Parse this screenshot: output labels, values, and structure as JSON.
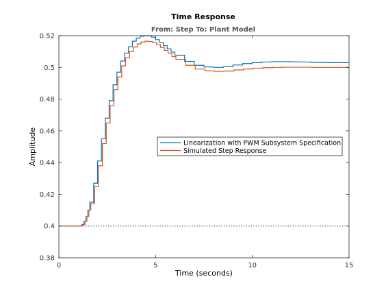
{
  "chart_data": {
    "type": "line",
    "title": "Time Response",
    "subtitle": "From: Step  To: Plant Model",
    "xlabel": "Time (seconds)",
    "ylabel": "Amplitude",
    "xlim": [
      0,
      15
    ],
    "ylim": [
      0.38,
      0.52
    ],
    "xticks": [
      0,
      5,
      10,
      15
    ],
    "yticks": [
      0.38,
      0.4,
      0.42,
      0.44,
      0.46,
      0.48,
      0.5,
      0.52
    ],
    "grid": false,
    "legend_position": "right",
    "reference_line": {
      "y": 0.4,
      "style": "dotted"
    },
    "series": [
      {
        "name": "Linearization with PWM Subsystem Specification",
        "color": "#0072BD",
        "x": [
          0,
          1.0,
          1.1,
          1.2,
          1.3,
          1.4,
          1.5,
          1.6,
          1.8,
          2.0,
          2.2,
          2.4,
          2.6,
          2.8,
          3.0,
          3.2,
          3.4,
          3.6,
          3.8,
          4.0,
          4.2,
          4.4,
          4.6,
          4.8,
          5.0,
          5.2,
          5.4,
          5.6,
          5.8,
          6.0,
          6.5,
          7.0,
          7.5,
          8.0,
          8.5,
          9.0,
          9.5,
          10.0,
          10.5,
          11.0,
          11.5,
          12.0,
          12.5,
          13.0,
          13.5,
          14.0,
          14.5,
          15.0
        ],
        "y": [
          0.4,
          0.4,
          0.4002,
          0.401,
          0.403,
          0.406,
          0.41,
          0.415,
          0.427,
          0.441,
          0.455,
          0.468,
          0.479,
          0.489,
          0.497,
          0.504,
          0.509,
          0.513,
          0.5165,
          0.5185,
          0.5196,
          0.52,
          0.5198,
          0.519,
          0.5175,
          0.5157,
          0.5137,
          0.5117,
          0.5096,
          0.5077,
          0.5038,
          0.5013,
          0.5003,
          0.5,
          0.5004,
          0.5015,
          0.5024,
          0.503,
          0.5034,
          0.5036,
          0.5036,
          0.5035,
          0.5034,
          0.5032,
          0.5031,
          0.503,
          0.503,
          0.503
        ]
      },
      {
        "name": "Simulated Step Response",
        "color": "#D95319",
        "x": [
          0,
          1.05,
          1.15,
          1.25,
          1.35,
          1.45,
          1.55,
          1.65,
          1.85,
          2.05,
          2.25,
          2.45,
          2.65,
          2.85,
          3.05,
          3.25,
          3.45,
          3.65,
          3.85,
          4.05,
          4.25,
          4.45,
          4.65,
          4.85,
          5.05,
          5.25,
          5.45,
          5.65,
          5.85,
          6.05,
          6.55,
          7.05,
          7.55,
          8.05,
          8.55,
          9.05,
          9.55,
          10.05,
          10.55,
          11.05,
          11.55,
          12.05,
          12.55,
          13.05,
          13.55,
          14.05,
          14.55,
          15.0
        ],
        "y": [
          0.4,
          0.4,
          0.4002,
          0.401,
          0.403,
          0.406,
          0.41,
          0.414,
          0.425,
          0.438,
          0.452,
          0.465,
          0.476,
          0.486,
          0.494,
          0.501,
          0.506,
          0.51,
          0.5128,
          0.5148,
          0.516,
          0.5165,
          0.5163,
          0.5156,
          0.5143,
          0.5126,
          0.5107,
          0.5088,
          0.5068,
          0.505,
          0.5013,
          0.499,
          0.4978,
          0.4975,
          0.4977,
          0.4984,
          0.499,
          0.4995,
          0.4998,
          0.5,
          0.5001,
          0.5001,
          0.5001,
          0.5,
          0.5,
          0.5,
          0.5,
          0.5
        ]
      }
    ]
  }
}
